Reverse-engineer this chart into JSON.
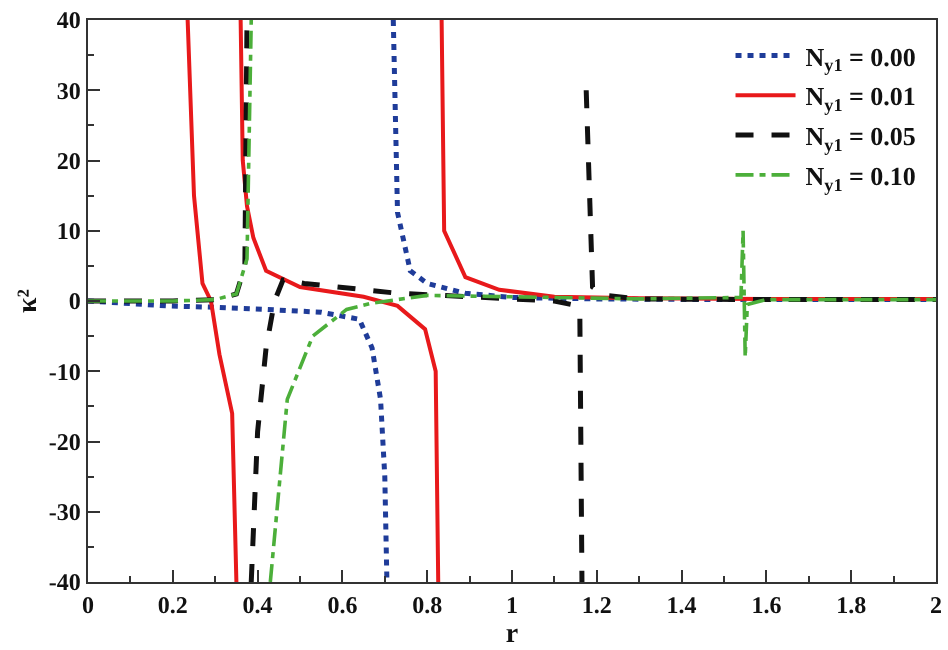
{
  "chart_data": {
    "type": "line",
    "xlabel": "r",
    "ylabel": "κ²",
    "xlim": [
      0,
      2
    ],
    "ylim": [
      -40,
      40
    ],
    "xticks": [
      0,
      0.2,
      0.4,
      0.6,
      0.8,
      1,
      1.2,
      1.4,
      1.6,
      1.8,
      2
    ],
    "yticks": [
      -40,
      -30,
      -20,
      -10,
      0,
      10,
      20,
      30,
      40
    ],
    "grid": false,
    "legend": "top right",
    "marker": "none",
    "series": [
      {
        "name": "N$_{y1}$ = 0.00",
        "color": "#1f3c99",
        "line_style": "dotted",
        "x": [
          0,
          0.19,
          0.3,
          0.42,
          0.55,
          0.64,
          0.67,
          0.69,
          0.7,
          0.705,
          0.715,
          0.72,
          0.73,
          0.76,
          0.8,
          0.89,
          1,
          1.2,
          1.5,
          2
        ],
        "values": [
          0,
          -0.7,
          -0.9,
          -1.2,
          -1.6,
          -2.6,
          -6.7,
          -14,
          -25,
          -40,
          null,
          40,
          12.6,
          4.3,
          2.5,
          1.1,
          0.5,
          0.3,
          0.2,
          0.2
        ]
      },
      {
        "name": "N$_{y1}$ = 0.01",
        "color": "#e8191b",
        "line_style": "solid",
        "x": [
          0.235,
          0.25,
          0.27,
          0.29,
          0.31,
          0.34,
          0.35,
          0.355,
          0.36,
          0.365,
          0.375,
          0.39,
          0.42,
          0.5,
          0.65,
          0.73,
          0.795,
          0.82,
          0.826,
          0.83,
          0.834,
          0.84,
          0.89,
          0.97,
          1.1,
          1.3,
          1.6,
          2
        ],
        "values": [
          40,
          15,
          2.5,
          0,
          -7.6,
          -16,
          -40,
          null,
          40,
          20,
          13.5,
          9,
          4.3,
          2,
          0.6,
          -0.7,
          -4,
          -10,
          -40,
          null,
          40,
          10,
          3.4,
          1.6,
          0.6,
          0.4,
          0.3,
          0.3
        ]
      },
      {
        "name": "N$_{y1}$ = 0.05",
        "color": "#111111",
        "line_style": "dashed",
        "x": [
          0,
          0.2,
          0.3,
          0.35,
          0.37,
          0.375,
          0.38,
          0.385,
          0.4,
          0.42,
          0.44,
          0.46,
          0.51,
          0.73,
          0.9,
          1.1,
          1.14,
          1.16,
          1.165,
          1.17,
          1.175,
          1.19,
          1.22,
          1.3,
          1.6,
          2
        ],
        "values": [
          0,
          0,
          0.2,
          1,
          5,
          40,
          null,
          -40,
          -18.6,
          -6.7,
          0,
          3,
          2.5,
          1.1,
          0.6,
          0,
          -0.5,
          -2,
          -40,
          null,
          30,
          2,
          0.8,
          0.3,
          0.2,
          0.2
        ]
      },
      {
        "name": "N$_{y1}$ = 0.10",
        "color": "#4caf3a",
        "line_style": "dashdot",
        "x": [
          0,
          0.2,
          0.3,
          0.35,
          0.375,
          0.385,
          0.4,
          0.43,
          0.47,
          0.53,
          0.61,
          0.67,
          0.8,
          1,
          1.3,
          1.54,
          1.545,
          1.55,
          1.555,
          1.6,
          2
        ],
        "values": [
          0,
          0,
          0.2,
          1,
          6,
          40,
          null,
          -40,
          -14,
          -5,
          -1.2,
          -0.3,
          0.8,
          0.6,
          0.3,
          0.5,
          10,
          -8,
          -0.5,
          0.2,
          0.2
        ]
      }
    ]
  }
}
